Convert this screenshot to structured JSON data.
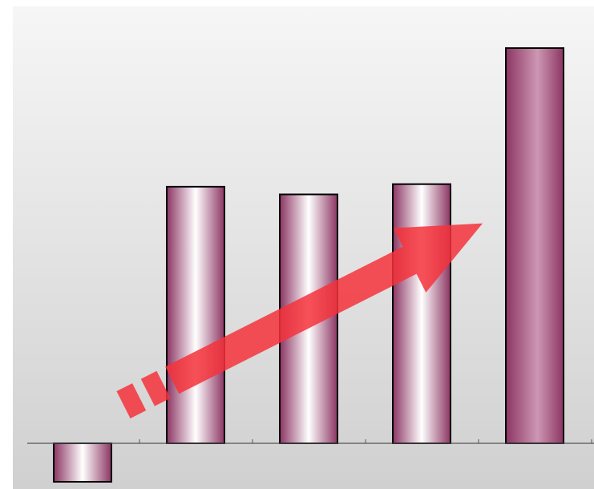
{
  "chart_data": {
    "type": "bar",
    "categories": [
      "",
      "",
      "",
      "",
      ""
    ],
    "values": [
      -15,
      100,
      97,
      101,
      154
    ],
    "ylim": [
      -17,
      170
    ],
    "title": "",
    "xlabel": "",
    "ylabel": "",
    "grid": false,
    "legend": "none",
    "trend_arrow": true,
    "colors": {
      "background_top": "#f6f6f6",
      "background_bottom": "#d0d0d0",
      "bar_edge": "#8c3563",
      "bar_highlight": "#ffffff",
      "bar_last_mid": "#cd97b3",
      "bar_outline": "#000000",
      "axis": "#555555",
      "arrow": "#f5333b"
    }
  }
}
